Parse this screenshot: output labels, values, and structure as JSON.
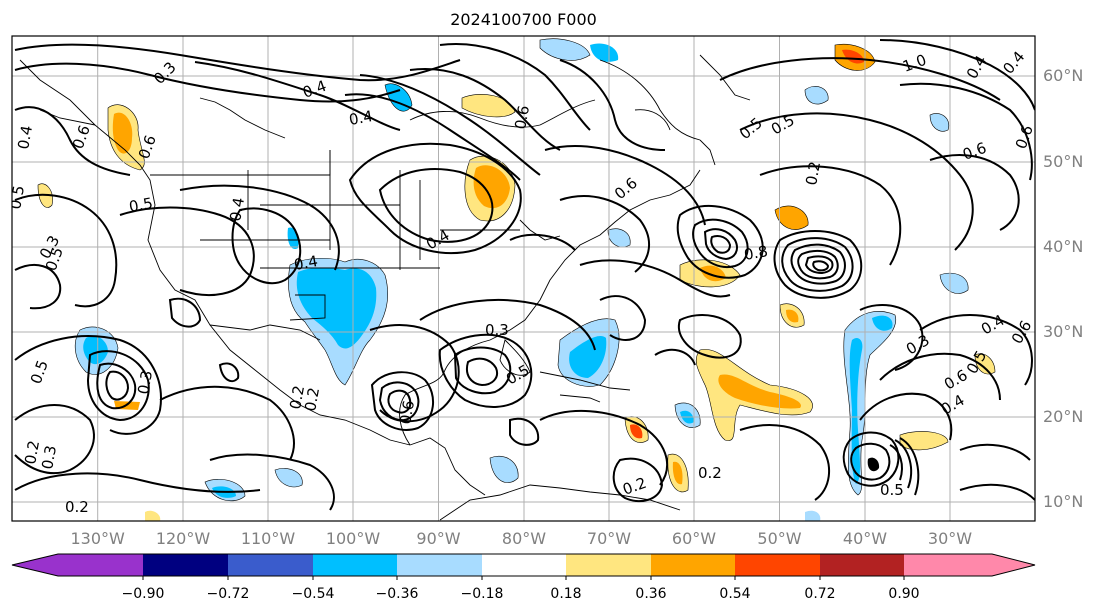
{
  "title": "2024100700 F000",
  "map": {
    "projection": "lat-lon",
    "lon_range": [
      -140,
      -20
    ],
    "lat_range": [
      7,
      64
    ],
    "lon_labels": [
      "130°W",
      "120°W",
      "110°W",
      "100°W",
      "90°W",
      "80°W",
      "70°W",
      "60°W",
      "50°W",
      "40°W",
      "30°W"
    ],
    "lat_labels": [
      "60°N",
      "50°N",
      "40°N",
      "30°N",
      "20°N",
      "10°N"
    ],
    "contour_labels": [
      "0.3",
      "0.4",
      "0.4",
      "0.4",
      "0.5",
      "0.5",
      "0.5",
      "0.6",
      "0.6",
      "0.3",
      "0.2",
      "0.2",
      "0.2",
      "0.3",
      "0.5",
      "0.4",
      "1.0",
      "0.4",
      "0.5",
      "0.6",
      "0.2",
      "0.3",
      "0.4",
      "0.6",
      "0.5",
      "0.8",
      "0.4",
      "0.3",
      "0.2",
      "0.3",
      "0.5",
      "0.6",
      "0.6",
      "0.4",
      "0.6",
      "0.4",
      "0.5",
      "0.4",
      "0.6",
      "0.6",
      "0.5",
      "0.2",
      "0.2"
    ],
    "colors": {
      "outline": "#000000",
      "grid": "#b0b0b0",
      "coast": "#000000"
    }
  },
  "colorbar": {
    "ticks": [
      "−0.90",
      "−0.72",
      "−0.54",
      "−0.36",
      "−0.18",
      "0.18",
      "0.36",
      "0.54",
      "0.72",
      "0.90"
    ],
    "colors": [
      "#9932cc",
      "#000080",
      "#3a5ccc",
      "#00bfff",
      "#a8dcff",
      "#ffffff",
      "#ffe680",
      "#ffa500",
      "#ff4500",
      "#b22222",
      "#ff88aa"
    ]
  }
}
